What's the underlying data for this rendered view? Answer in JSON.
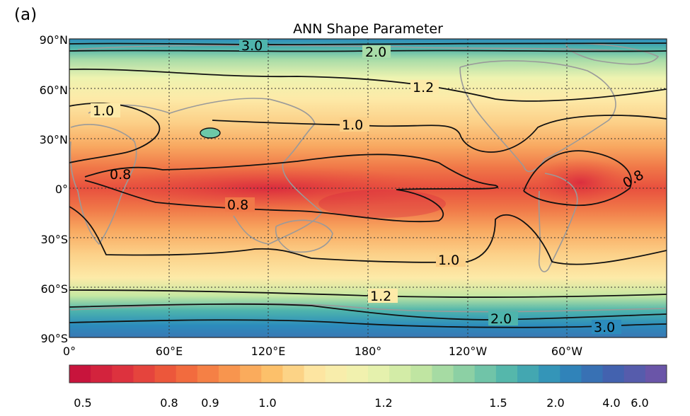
{
  "panel_label": "(a)",
  "title": "ANN Shape Parameter",
  "lat_labels": [
    "90°N",
    "60°N",
    "30°N",
    "0°",
    "30°S",
    "60°S",
    "90°S"
  ],
  "lon_labels": [
    "0°",
    "60°E",
    "120°E",
    "180°",
    "120°W",
    "60°W"
  ],
  "colorbar": {
    "tick_labels": [
      "0.5",
      "0.8",
      "0.9",
      "1.0",
      "1.2",
      "1.5",
      "2.0",
      "4.0",
      "6.0"
    ],
    "colors": [
      "#c8143c",
      "#e0363e",
      "#f0603a",
      "#f8904a",
      "#fcc06a",
      "#fdeaa8",
      "#eef3b0",
      "#c6e8a2",
      "#8cd0a4",
      "#4eb4ac",
      "#2c8cbc",
      "#3e64b0",
      "#6a55a8"
    ]
  },
  "contour_labels": [
    "3.0",
    "2.0",
    "1.2",
    "1.0",
    "1.0",
    "0.8",
    "0.8",
    "0.8",
    "1.0",
    "1.2",
    "2.0",
    "3.0"
  ],
  "colors": {
    "land_outline": "#9a9a9a",
    "contour": "#111111",
    "grid": "#333333"
  }
}
